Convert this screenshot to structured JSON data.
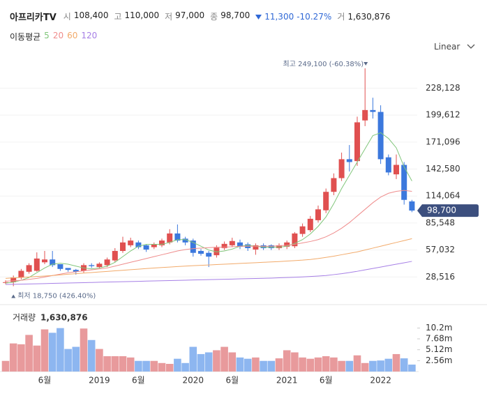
{
  "header": {
    "title": "아프리카TV",
    "quotes": [
      {
        "label": "시",
        "value": "108,400"
      },
      {
        "label": "고",
        "value": "110,000"
      },
      {
        "label": "저",
        "value": "97,000"
      },
      {
        "label": "종",
        "value": "98,700"
      }
    ],
    "change": "11,300",
    "change_pct": "-10.27%",
    "volume_label": "거",
    "volume": "1,630,876"
  },
  "scale_mode": "Linear",
  "chart_data": [
    {
      "type": "candlestick",
      "legend_title": "이동평균",
      "categories": [
        null,
        null,
        null,
        null,
        null,
        "6월",
        null,
        null,
        null,
        null,
        null,
        null,
        "2019",
        null,
        null,
        null,
        null,
        "6월",
        null,
        null,
        null,
        null,
        null,
        null,
        "2020",
        null,
        null,
        null,
        null,
        "6월",
        null,
        null,
        null,
        null,
        null,
        null,
        "2021",
        null,
        null,
        null,
        null,
        "6월",
        null,
        null,
        null,
        null,
        null,
        null,
        "2022",
        null,
        null,
        null,
        null
      ],
      "open": [
        22500,
        23000,
        28000,
        34000,
        35000,
        44000,
        47000,
        42000,
        38000,
        36000,
        35000,
        41000,
        39000,
        41000,
        46000,
        56000,
        62000,
        65000,
        62000,
        60000,
        62000,
        65000,
        74500,
        69000,
        67000,
        56000,
        54000,
        51500,
        59000,
        62000,
        65000,
        63000,
        57500,
        62000,
        62000,
        59000,
        60500,
        61000,
        74000,
        78000,
        88500,
        99000,
        118500,
        133000,
        153000,
        151000,
        194000,
        205000,
        203000,
        155000,
        137000,
        147000,
        108400
      ],
      "high": [
        25000,
        30000,
        37000,
        43000,
        54500,
        56000,
        56000,
        40000,
        38000,
        37000,
        43000,
        43000,
        44000,
        49000,
        59000,
        71000,
        70000,
        67000,
        63000,
        65000,
        69000,
        79000,
        84000,
        71000,
        69000,
        58000,
        56000,
        62000,
        66000,
        70000,
        68000,
        65000,
        64000,
        64000,
        63000,
        64000,
        67000,
        76000,
        85000,
        93000,
        104000,
        122000,
        138000,
        160000,
        168000,
        198000,
        249100,
        218000,
        210000,
        158000,
        158000,
        150000,
        110000
      ],
      "low": [
        21000,
        18750,
        26000,
        32000,
        34000,
        42000,
        39000,
        35000,
        34000,
        31000,
        33000,
        38000,
        37500,
        39000,
        44000,
        54000,
        60000,
        58000,
        55000,
        58000,
        60000,
        63000,
        65000,
        62000,
        50000,
        51000,
        39000,
        49000,
        57000,
        60000,
        58000,
        56000,
        52000,
        57000,
        57000,
        57000,
        58000,
        59000,
        71000,
        76000,
        86000,
        96000,
        115000,
        130000,
        140000,
        146000,
        188000,
        196000,
        148000,
        136000,
        132000,
        105000,
        97000
      ],
      "close": [
        23000,
        28000,
        35000,
        41000,
        48000,
        47000,
        41000,
        37000,
        36000,
        34000,
        41000,
        40000,
        42500,
        47000,
        56000,
        65000,
        67000,
        60000,
        57500,
        63000,
        67000,
        74500,
        67000,
        65000,
        54000,
        53000,
        50000,
        59500,
        63500,
        66500,
        60500,
        59000,
        62000,
        59000,
        59000,
        62000,
        65000,
        74500,
        82000,
        90000,
        100000,
        118500,
        133000,
        153000,
        150000,
        192000,
        205000,
        203000,
        153000,
        139000,
        147000,
        110000,
        98700
      ],
      "up_color": "#e05050",
      "down_color": "#3b78dd",
      "series": [
        {
          "name": "5",
          "color": "#80c67a",
          "values": [
            22000,
            23000,
            25000,
            28000,
            33000,
            38000,
            42000,
            43000,
            42000,
            40000,
            38000,
            37000,
            38000,
            40000,
            44000,
            50000,
            56000,
            61000,
            63000,
            63000,
            63000,
            65000,
            68000,
            68000,
            65000,
            61000,
            57000,
            55000,
            56000,
            58000,
            61000,
            62000,
            61000,
            60000,
            60000,
            60000,
            61000,
            64000,
            68000,
            74000,
            82000,
            92000,
            106000,
            122000,
            136000,
            150000,
            164000,
            178000,
            181000,
            175000,
            165000,
            145000,
            130000
          ]
        },
        {
          "name": "20",
          "color": "#ef8c8c",
          "values": [
            24000,
            24500,
            25000,
            26000,
            27000,
            28500,
            30000,
            31500,
            33000,
            34000,
            35000,
            36000,
            37000,
            38000,
            40000,
            42000,
            44000,
            46000,
            48000,
            50000,
            52000,
            54000,
            56000,
            57500,
            58500,
            59000,
            59500,
            60000,
            60000,
            60500,
            61000,
            61000,
            61000,
            61000,
            61000,
            61500,
            62000,
            63000,
            64500,
            66000,
            68000,
            71000,
            75000,
            80000,
            86000,
            93000,
            100000,
            107000,
            113000,
            117000,
            119000,
            120000,
            119000
          ]
        },
        {
          "name": "60",
          "color": "#f2aa6a",
          "values": [
            27000,
            27500,
            28000,
            28500,
            29000,
            29500,
            30000,
            30700,
            31400,
            32000,
            32600,
            33200,
            33800,
            34400,
            35000,
            35600,
            36200,
            36800,
            37400,
            38000,
            38500,
            39000,
            39500,
            40000,
            40400,
            40800,
            41200,
            41600,
            42000,
            42400,
            42800,
            43200,
            43600,
            44000,
            44400,
            44800,
            45300,
            45800,
            46300,
            47000,
            48000,
            49200,
            50500,
            52000,
            53500,
            55000,
            57000,
            59000,
            61000,
            63000,
            65000,
            67000,
            69000
          ]
        },
        {
          "name": "120",
          "color": "#a67fe6",
          "values": [
            20500,
            20700,
            20900,
            21100,
            21300,
            21500,
            21700,
            21900,
            22100,
            22300,
            22500,
            22700,
            22900,
            23100,
            23300,
            23500,
            23700,
            23900,
            24100,
            24300,
            24500,
            24700,
            24900,
            25100,
            25300,
            25500,
            25700,
            25900,
            26100,
            26300,
            26500,
            26700,
            26900,
            27100,
            27300,
            27600,
            27900,
            28200,
            28600,
            29000,
            29500,
            30000,
            31000,
            32000,
            33200,
            34500,
            36000,
            37500,
            39000,
            40500,
            42000,
            43500,
            45000
          ]
        }
      ],
      "ylim": [
        0,
        255000
      ],
      "yticks": [
        {
          "value": 28516,
          "label": "28,516"
        },
        {
          "value": 57032,
          "label": "57,032"
        },
        {
          "value": 85548,
          "label": "85,548"
        },
        {
          "value": 114064,
          "label": "114,064"
        },
        {
          "value": 142580,
          "label": "142,580"
        },
        {
          "value": 171096,
          "label": "171,096"
        },
        {
          "value": 199612,
          "label": "199,612"
        },
        {
          "value": 228128,
          "label": "228,128"
        }
      ],
      "current_price": {
        "value": 98700,
        "label": "98,700"
      },
      "high_label": "최고 249,100 (-60.38%)",
      "low_label": "최저 18,750 (426.40%)",
      "grid": true
    },
    {
      "type": "bar",
      "title": "거래량",
      "title_value": "1,630,876",
      "values": [
        2500000,
        6600000,
        6400000,
        8600000,
        6100000,
        9900000,
        9100000,
        10200000,
        5300000,
        5800000,
        10100000,
        7400000,
        5300000,
        3600000,
        3600000,
        3600000,
        3300000,
        2500000,
        2500000,
        2500000,
        2000000,
        1800000,
        3000000,
        2000000,
        5800000,
        4100000,
        4500000,
        5000000,
        5800000,
        4500000,
        3300000,
        3000000,
        3300000,
        2500000,
        2500000,
        3100000,
        5000000,
        4500000,
        3300000,
        3000000,
        3300000,
        3600000,
        3300000,
        2500000,
        2500000,
        3800000,
        2000000,
        2500000,
        2600000,
        3000000,
        4100000,
        3100000,
        1630876
      ],
      "up_color": "#e89a9c",
      "down_color": "#8db6f0",
      "ylim": [
        0,
        14400000
      ],
      "yticks": [
        {
          "value": 2560000,
          "label": "2.56m"
        },
        {
          "value": 5120000,
          "label": "5.12m"
        },
        {
          "value": 7680000,
          "label": "7.68m"
        },
        {
          "value": 10200000,
          "label": "10.2m"
        }
      ]
    }
  ]
}
